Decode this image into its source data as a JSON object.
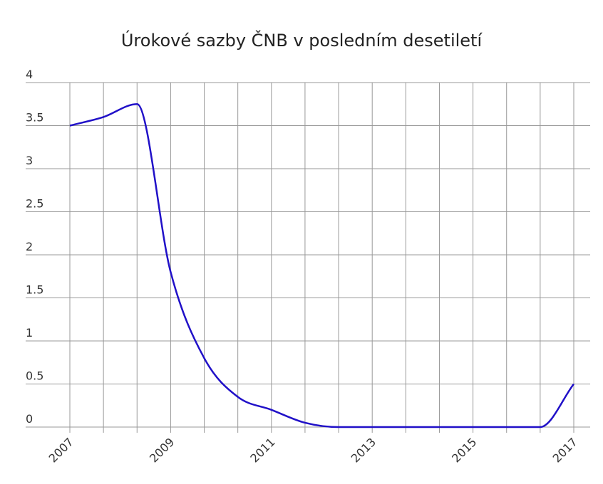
{
  "chart_data": {
    "type": "line",
    "title": "Úrokové sazby ČNB v posledním desetiletí",
    "categories": [
      "2007",
      null,
      null,
      "2009",
      null,
      null,
      "2011",
      null,
      null,
      "2013",
      null,
      null,
      "2015",
      null,
      null,
      "2017"
    ],
    "series": [
      {
        "color": "#2010c8",
        "values": [
          3.5,
          3.6,
          3.75,
          1.8,
          0.8,
          0.35,
          0.2,
          0.05,
          0,
          0,
          0,
          0,
          0,
          0,
          0,
          0.5
        ]
      }
    ],
    "ylim": [
      0,
      4
    ],
    "yticks": [
      0,
      0.5,
      1,
      1.5,
      2,
      2.5,
      3,
      3.5,
      4
    ],
    "grid": true
  }
}
